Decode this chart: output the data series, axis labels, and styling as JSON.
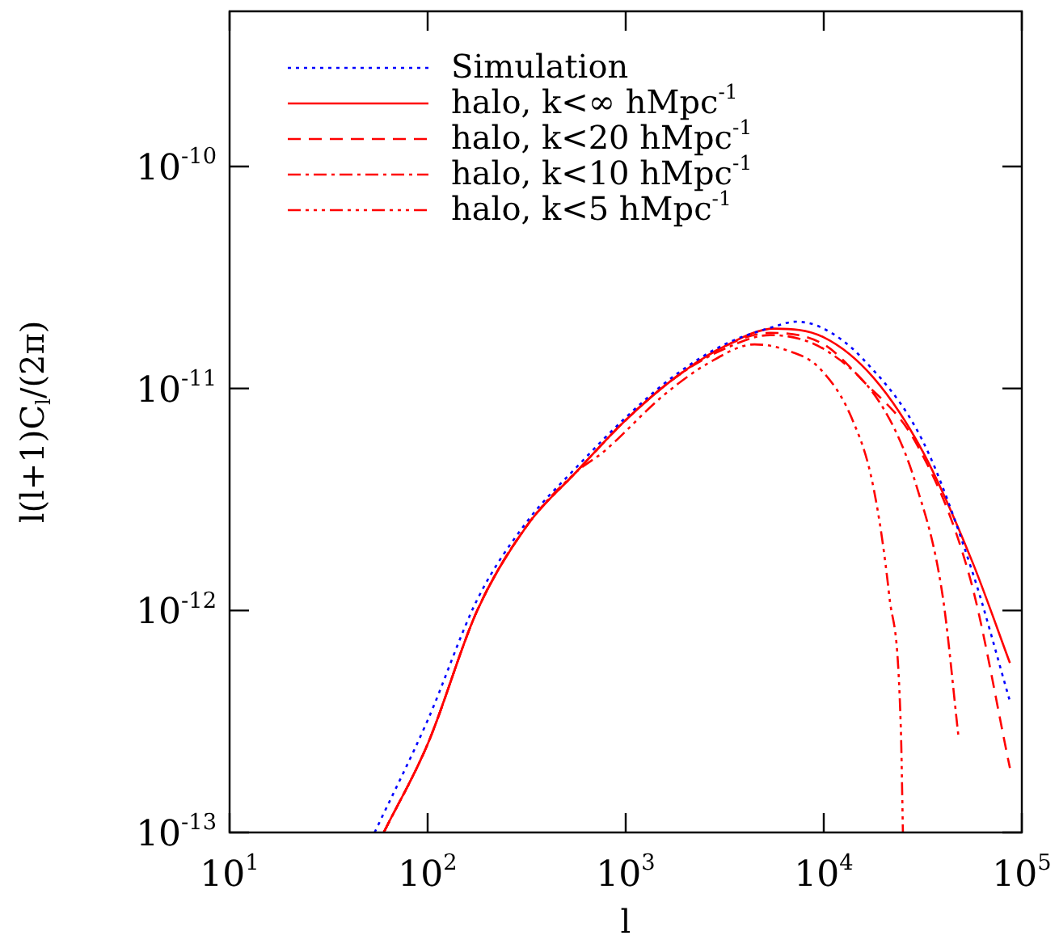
{
  "chart_data": {
    "type": "line",
    "xlabel": "l",
    "ylabel": "l(l+1)C$_{l}$/(2π)",
    "log": "xy",
    "grid": false,
    "legend": "top left",
    "marker": "none",
    "xlim": [
      10,
      100000
    ],
    "ylim": [
      1e-13,
      5e-10
    ],
    "xticks": [
      {
        "value": 10,
        "label": "10$^{1}$"
      },
      {
        "value": 100,
        "label": "10$^{2}$"
      },
      {
        "value": 1000,
        "label": "10$^{3}$"
      },
      {
        "value": 10000,
        "label": "10$^{4}$"
      },
      {
        "value": 100000,
        "label": "10$^{5}$"
      }
    ],
    "yticks": [
      {
        "value": 1e-13,
        "label": "10$^{-13}$"
      },
      {
        "value": 1e-12,
        "label": "10$^{-12}$"
      },
      {
        "value": 1e-11,
        "label": "10$^{-11}$"
      },
      {
        "value": 1e-10,
        "label": "10$^{-10}$"
      }
    ],
    "series": [
      {
        "name": "Simulation",
        "color": "#0000ff",
        "line_style": "dotted",
        "x": [
          54,
          100,
          178,
          316,
          562,
          1000,
          1780,
          3160,
          5620,
          7240,
          10000,
          15500,
          31600,
          56200,
          87100
        ],
        "values": [
          1e-13,
          3.2e-13,
          1.12e-12,
          2.5e-12,
          4.4e-12,
          7.4e-12,
          1.15e-11,
          1.58e-11,
          1.9e-11,
          2e-11,
          1.86e-11,
          1.38e-11,
          5.8e-12,
          1.5e-12,
          3.9e-13
        ]
      },
      {
        "name": "halo, k<∞ hMpc$^{-1}$",
        "color": "#ff0000",
        "line_style": "solid",
        "x": [
          60,
          100,
          178,
          316,
          562,
          1000,
          1780,
          3160,
          5620,
          10000,
          17800,
          31600,
          56200,
          87100
        ],
        "values": [
          1e-13,
          2.5e-13,
          1e-12,
          2.4e-12,
          4.2e-12,
          7.2e-12,
          1.12e-11,
          1.55e-11,
          1.86e-11,
          1.7e-11,
          1.12e-11,
          5.2e-12,
          1.66e-12,
          5.8e-13
        ]
      },
      {
        "name": "halo, k<20 hMpc$^{-1}$",
        "color": "#ff0000",
        "line_style": "dashed",
        "x": [
          60,
          100,
          178,
          316,
          562,
          1000,
          1780,
          3160,
          5370,
          10000,
          15500,
          29500,
          55000,
          87100
        ],
        "values": [
          1e-13,
          2.5e-13,
          1e-12,
          2.4e-12,
          4.2e-12,
          7.2e-12,
          1.12e-11,
          1.55e-11,
          1.78e-11,
          1.58e-11,
          1.1e-11,
          5.6e-12,
          1.38e-12,
          1.95e-13
        ]
      },
      {
        "name": "halo, k<10 hMpc$^{-1}$",
        "color": "#ff0000",
        "line_style": "dashdot",
        "x": [
          60,
          100,
          178,
          316,
          562,
          1000,
          1780,
          3160,
          5370,
          10700,
          20400,
          29500,
          39800,
          47900
        ],
        "values": [
          1e-13,
          2.5e-13,
          1e-12,
          2.4e-12,
          4.2e-12,
          7.2e-12,
          1.12e-11,
          1.51e-11,
          1.74e-11,
          1.45e-11,
          7.9e-12,
          3.6e-12,
          1.17e-12,
          2.7e-13
        ]
      },
      {
        "name": "halo, k<5 hMpc$^{-1}$",
        "color": "#ff0000",
        "line_style": "dashdotdotdot",
        "x": [
          60,
          100,
          178,
          316,
          562,
          776,
          1550,
          2690,
          4470,
          6610,
          9550,
          13800,
          17800,
          21400,
          24500,
          25100
        ],
        "values": [
          1e-13,
          2.5e-13,
          1e-12,
          2.4e-12,
          4.2e-12,
          5.2e-12,
          9.3e-12,
          1.32e-11,
          1.58e-11,
          1.48e-11,
          1.23e-11,
          7.4e-12,
          3.6e-12,
          1.17e-12,
          2.95e-13,
          1e-13
        ]
      }
    ]
  }
}
